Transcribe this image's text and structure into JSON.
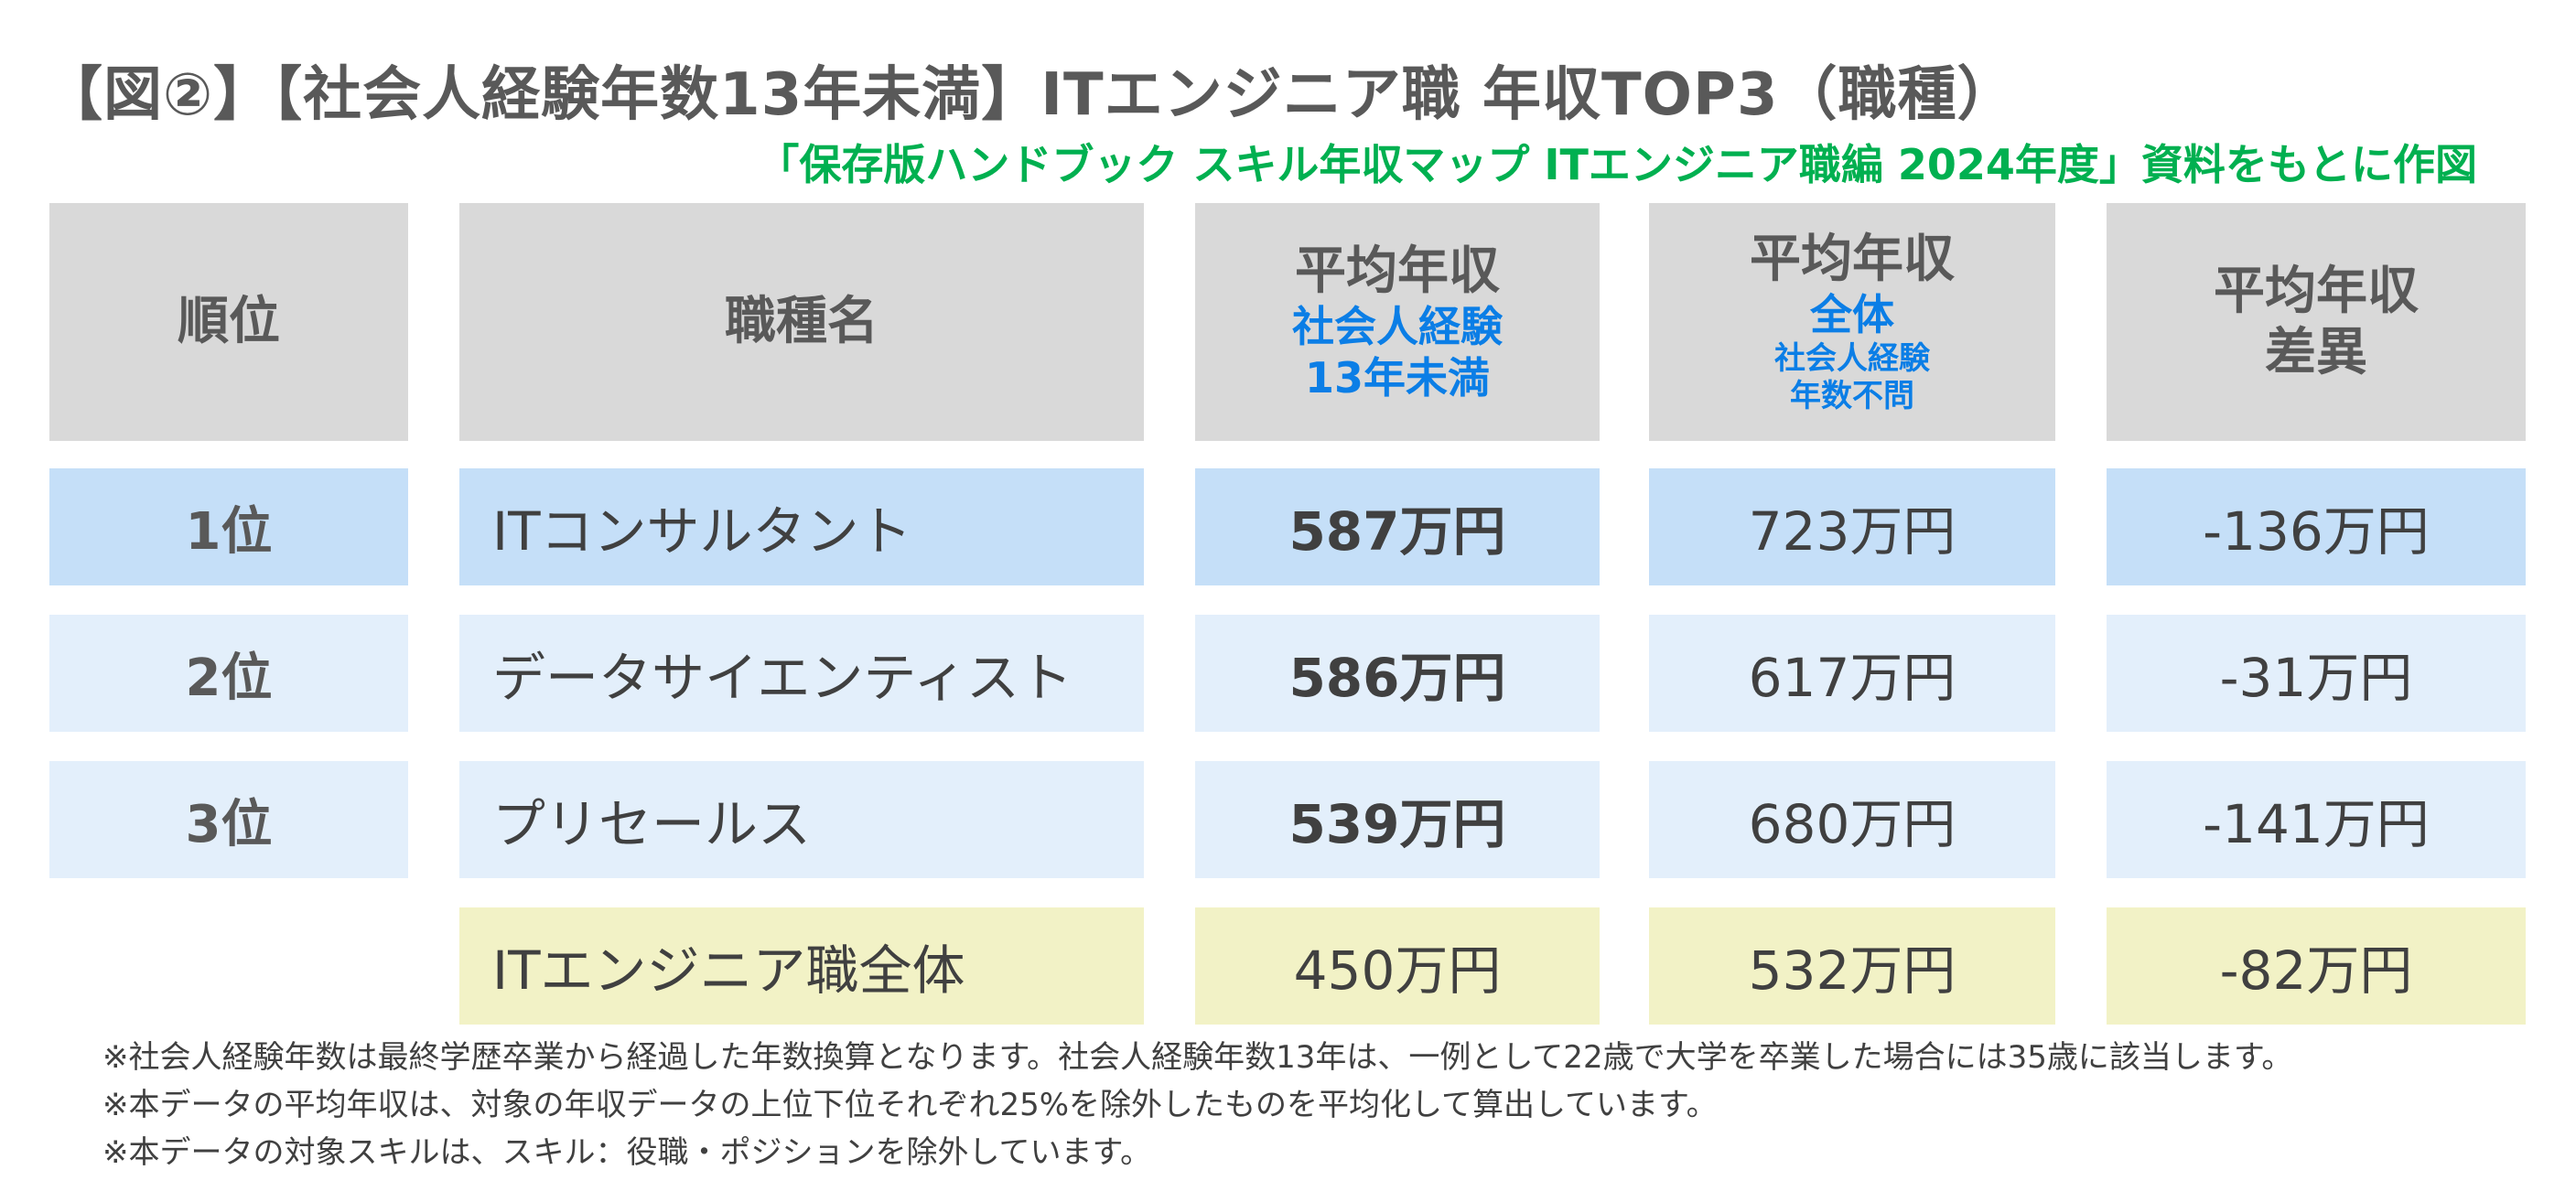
{
  "title": "【図②】【社会人経験年数13年未満】ITエンジニア職 年収TOP3（職種）",
  "subtitle": "「保存版ハンドブック スキル年収マップ ITエンジニア職編 2024年度」資料をもとに作図",
  "chart_data": {
    "type": "table",
    "headers": {
      "rank": "順位",
      "job": "職種名",
      "avg_main": "平均年収",
      "avg_sub1": "社会人経験",
      "avg_sub2": "13年未満",
      "all_main": "平均年収",
      "all_sub1": "全体",
      "all_sub2": "社会人経験",
      "all_sub3": "年数不問",
      "diff_main1": "平均年収",
      "diff_main2": "差異"
    },
    "rows": [
      {
        "rank": "1位",
        "job": "ITコンサルタント",
        "avg": "587万円",
        "all": "723万円",
        "diff": "-136万円"
      },
      {
        "rank": "2位",
        "job": "データサイエンティスト",
        "avg": "586万円",
        "all": "617万円",
        "diff": "-31万円"
      },
      {
        "rank": "3位",
        "job": "プリセールス",
        "avg": "539万円",
        "all": "680万円",
        "diff": "-141万円"
      }
    ],
    "total": {
      "job": "ITエンジニア職全体",
      "avg": "450万円",
      "all": "532万円",
      "diff": "-82万円"
    },
    "colors": {
      "header": "#d9d9d9",
      "row1": "#c5dff8",
      "row_other": "#e3effb",
      "total": "#f2f2c6",
      "accent_blue": "#0b7ee6",
      "accent_green": "#00b050"
    }
  },
  "notes": [
    "※社会人経験年数は最終学歴卒業から経過した年数換算となります。社会人経験年数13年は、一例として22歳で大学を卒業した場合には35歳に該当します。",
    "※本データの平均年収は、対象の年収データの上位下位それぞれ25%を除外したものを平均化して算出しています。",
    "※本データの対象スキルは、スキル：役職・ポジションを除外しています。"
  ]
}
